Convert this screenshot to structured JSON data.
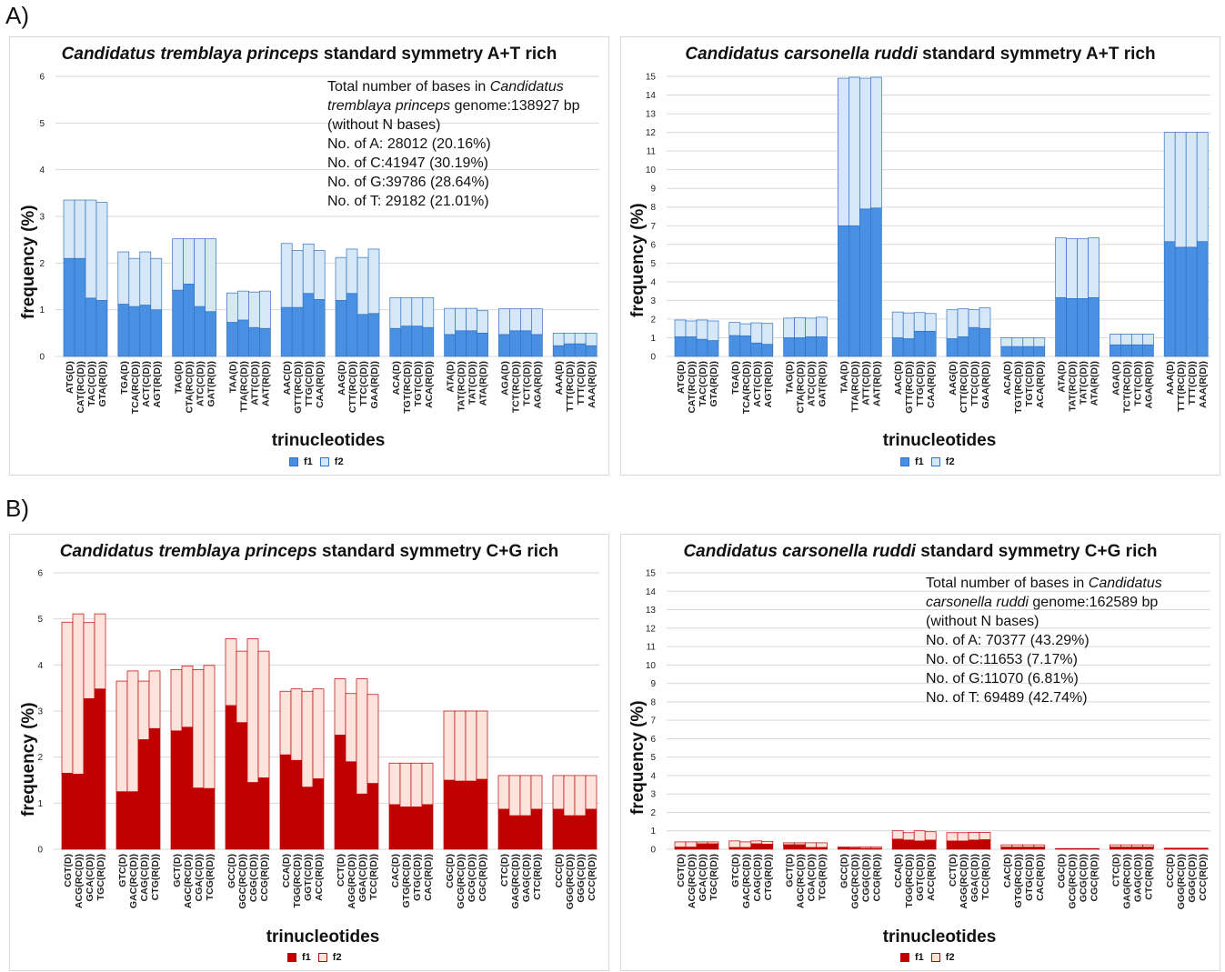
{
  "section_labels": {
    "a": "A)",
    "b": "B)"
  },
  "palette": {
    "blue_f1": "#4a90e2",
    "blue_f2": "#d6e8f8",
    "blue_stroke": "#2e73c4",
    "red_f1": "#c00000",
    "red_f2": "#fde3dc",
    "red_stroke": "#c00000"
  },
  "panels": [
    {
      "title_italic": "Candidatus tremblaya princeps",
      "title_rest": " standard symmetry A+T rich",
      "ylabel": "frequency (%)",
      "xlabel": "trinucleotides",
      "legend": [
        "f1",
        "f2"
      ],
      "annotation": [
        {
          "parts": [
            {
              "t": "Total number of bases in "
            },
            {
              "t": "Candidatus",
              "i": true
            }
          ]
        },
        {
          "parts": [
            {
              "t": "tremblaya princeps",
              "i": true
            },
            {
              "t": " genome:138927 bp"
            }
          ]
        },
        {
          "parts": [
            {
              "t": " (without N bases)"
            }
          ]
        },
        {
          "parts": [
            {
              "t": "No. of A: 28012 (20.16%)"
            }
          ]
        },
        {
          "parts": [
            {
              "t": "No. of C:41947 (30.19%)"
            }
          ]
        },
        {
          "parts": [
            {
              "t": "No. of G:39786 (28.64%)"
            }
          ]
        },
        {
          "parts": [
            {
              "t": "No. of T: 29182 (21.01%)"
            }
          ]
        }
      ]
    },
    {
      "title_italic": "Candidatus carsonella ruddi",
      "title_rest": " standard symmetry A+T rich",
      "ylabel": "frequency (%)",
      "xlabel": "trinucleotides",
      "legend": [
        "f1",
        "f2"
      ],
      "annotation": []
    },
    {
      "title_italic": "Candidatus tremblaya princeps",
      "title_rest": " standard symmetry C+G rich",
      "ylabel": "frequency (%)",
      "xlabel": "trinucleotides",
      "legend": [
        "f1",
        "f2"
      ],
      "annotation": []
    },
    {
      "title_italic": "Candidatus  carsonella ruddi",
      "title_rest": " standard symmetry C+G rich",
      "ylabel": "frequency (%)",
      "xlabel": "trinucleotides",
      "legend": [
        "f1",
        "f2"
      ],
      "annotation": [
        {
          "parts": [
            {
              "t": "Total number of bases in "
            },
            {
              "t": "Candidatus",
              "i": true
            }
          ]
        },
        {
          "parts": [
            {
              "t": "carsonella ruddi",
              "i": true
            },
            {
              "t": " genome:162589 bp"
            }
          ]
        },
        {
          "parts": [
            {
              "t": " (without N bases)"
            }
          ]
        },
        {
          "parts": [
            {
              "t": "No. of A: 70377 (43.29%)"
            }
          ]
        },
        {
          "parts": [
            {
              "t": "No. of C:11653  (7.17%)"
            }
          ]
        },
        {
          "parts": [
            {
              "t": "No. of G:11070  (6.81%)"
            }
          ]
        },
        {
          "parts": [
            {
              "t": "No. of T: 69489 (42.74%)"
            }
          ]
        }
      ]
    }
  ],
  "chart_data": [
    {
      "type": "bar",
      "stacked": true,
      "color_scheme": "blue",
      "title": "Candidatus tremblaya princeps standard symmetry A+T rich",
      "xlabel": "trinucleotides",
      "ylabel": "frequency (%)",
      "ylim": [
        0,
        6
      ],
      "yticks": [
        0,
        1,
        2,
        3,
        4,
        5,
        6
      ],
      "grid": true,
      "legend_position": "bottom",
      "groups": [
        {
          "labels": [
            "ATG(D)",
            "CAT(RC(D))",
            "TAC(C(D))",
            "GTA(R(D))"
          ],
          "f1": [
            2.1,
            2.1,
            1.25,
            1.2
          ],
          "f2": [
            1.25,
            1.25,
            2.1,
            2.1
          ]
        },
        {
          "labels": [
            "TGA(D)",
            "TCA(RC(D))",
            "ACT(C(D))",
            "AGT(R(D))"
          ],
          "f1": [
            1.12,
            1.07,
            1.1,
            1.0
          ],
          "f2": [
            1.12,
            1.03,
            1.14,
            1.1
          ]
        },
        {
          "labels": [
            "TAG(D)",
            "CTA(RC(D))",
            "ATC(C(D))",
            "GAT(R(D))"
          ],
          "f1": [
            1.42,
            1.55,
            1.07,
            0.96
          ],
          "f2": [
            1.1,
            0.97,
            1.45,
            1.56
          ]
        },
        {
          "labels": [
            "TAA(D)",
            "TTA(RC(D))",
            "ATT(C(D))",
            "AAT(R(D))"
          ],
          "f1": [
            0.73,
            0.78,
            0.62,
            0.6
          ],
          "f2": [
            0.63,
            0.62,
            0.76,
            0.8
          ]
        },
        {
          "labels": [
            "AAC(D)",
            "GTT(RC(D))",
            "TTG(C(D))",
            "CAA(R(D))"
          ],
          "f1": [
            1.05,
            1.05,
            1.35,
            1.22
          ],
          "f2": [
            1.37,
            1.22,
            1.06,
            1.05
          ]
        },
        {
          "labels": [
            "AAG(D)",
            "CTT(RC(D))",
            "TTC(C(D))",
            "GAA(R(D))"
          ],
          "f1": [
            1.2,
            1.35,
            0.9,
            0.92
          ],
          "f2": [
            0.92,
            0.95,
            1.22,
            1.38
          ]
        },
        {
          "labels": [
            "ACA(D)",
            "TGT(RC(D))",
            "TGT(C(D))",
            "ACA(R(D))"
          ],
          "f1": [
            0.6,
            0.65,
            0.65,
            0.62
          ],
          "f2": [
            0.66,
            0.61,
            0.61,
            0.64
          ]
        },
        {
          "labels": [
            "ATA(D)",
            "TAT(RC(D))",
            "TAT(C(D))",
            "ATA(R(D))"
          ],
          "f1": [
            0.47,
            0.55,
            0.55,
            0.5
          ],
          "f2": [
            0.56,
            0.48,
            0.48,
            0.48
          ]
        },
        {
          "labels": [
            "AGA(D)",
            "TCT(RC(D))",
            "TCT(C(D))",
            "AGA(R(D))"
          ],
          "f1": [
            0.47,
            0.55,
            0.55,
            0.47
          ],
          "f2": [
            0.55,
            0.47,
            0.47,
            0.55
          ]
        },
        {
          "labels": [
            "AAA(D)",
            "TTT(RC(D))",
            "TTT(C(D))",
            "AAA(R(D))"
          ],
          "f1": [
            0.23,
            0.27,
            0.27,
            0.23
          ],
          "f2": [
            0.27,
            0.23,
            0.23,
            0.27
          ]
        }
      ]
    },
    {
      "type": "bar",
      "stacked": true,
      "color_scheme": "blue",
      "title": "Candidatus carsonella ruddi standard symmetry A+T rich",
      "xlabel": "trinucleotides",
      "ylabel": "frequency (%)",
      "ylim": [
        0,
        15
      ],
      "yticks": [
        0,
        1,
        2,
        3,
        4,
        5,
        6,
        7,
        8,
        9,
        10,
        11,
        12,
        13,
        14,
        15
      ],
      "grid": true,
      "legend_position": "bottom",
      "groups": [
        {
          "labels": [
            "ATG(D)",
            "CAT(RC(D))",
            "TAC(C(D))",
            "GTA(R(D))"
          ],
          "f1": [
            1.05,
            1.05,
            0.92,
            0.85
          ],
          "f2": [
            0.9,
            0.85,
            1.03,
            1.05
          ]
        },
        {
          "labels": [
            "TGA(D)",
            "TCA(RC(D))",
            "ACT(C(D))",
            "AGT(R(D))"
          ],
          "f1": [
            1.12,
            1.1,
            0.72,
            0.65
          ],
          "f2": [
            0.7,
            0.65,
            1.08,
            1.12
          ]
        },
        {
          "labels": [
            "TAG(D)",
            "CTA(RC(D))",
            "ATC(C(D))",
            "GAT(R(D))"
          ],
          "f1": [
            1.0,
            1.0,
            1.05,
            1.05
          ],
          "f2": [
            1.05,
            1.08,
            1.0,
            1.05
          ]
        },
        {
          "labels": [
            "TAA(D)",
            "TTA(RC(D))",
            "ATT(C(D))",
            "AAT(R(D))"
          ],
          "f1": [
            7.0,
            7.0,
            7.9,
            7.95
          ],
          "f2": [
            7.9,
            7.95,
            7.0,
            7.0
          ]
        },
        {
          "labels": [
            "AAC(D)",
            "GTT(RC(D))",
            "TTG(C(D))",
            "CAA(R(D))"
          ],
          "f1": [
            1.0,
            0.95,
            1.35,
            1.35
          ],
          "f2": [
            1.38,
            1.38,
            1.0,
            0.95
          ]
        },
        {
          "labels": [
            "AAG(D)",
            "CTT(RC(D))",
            "TTC(C(D))",
            "GAA(R(D))"
          ],
          "f1": [
            0.95,
            1.05,
            1.55,
            1.5
          ],
          "f2": [
            1.55,
            1.5,
            0.95,
            1.1
          ]
        },
        {
          "labels": [
            "ACA(D)",
            "TGT(RC(D))",
            "TGT(C(D))",
            "ACA(R(D))"
          ],
          "f1": [
            0.53,
            0.53,
            0.53,
            0.53
          ],
          "f2": [
            0.47,
            0.47,
            0.47,
            0.47
          ]
        },
        {
          "labels": [
            "ATA(D)",
            "TAT(RC(D))",
            "TAT(C(D))",
            "ATA(R(D))"
          ],
          "f1": [
            3.15,
            3.1,
            3.1,
            3.15
          ],
          "f2": [
            3.2,
            3.2,
            3.2,
            3.2
          ]
        },
        {
          "labels": [
            "AGA(D)",
            "TCT(RC(D))",
            "TCT(C(D))",
            "AGA(R(D))"
          ],
          "f1": [
            0.62,
            0.62,
            0.62,
            0.62
          ],
          "f2": [
            0.58,
            0.58,
            0.58,
            0.58
          ]
        },
        {
          "labels": [
            "AAA(D)",
            "TTT(RC(D))",
            "TTT(C(D))",
            "AAA(R(D))"
          ],
          "f1": [
            6.15,
            5.85,
            5.85,
            6.15
          ],
          "f2": [
            5.85,
            6.15,
            6.15,
            5.85
          ]
        }
      ]
    },
    {
      "type": "bar",
      "stacked": true,
      "color_scheme": "red",
      "title": "Candidatus tremblaya princeps standard symmetry C+G rich",
      "xlabel": "trinucleotides",
      "ylabel": "frequency (%)",
      "ylim": [
        0,
        6
      ],
      "yticks": [
        0,
        1,
        2,
        3,
        4,
        5,
        6
      ],
      "grid": true,
      "legend_position": "bottom",
      "groups": [
        {
          "labels": [
            "CGT(D)",
            "ACG(RC(D))",
            "GCA(C(D))",
            "TGC(R(D))"
          ],
          "f1": [
            1.65,
            1.63,
            3.27,
            3.48
          ],
          "f2": [
            3.28,
            3.48,
            1.65,
            1.63
          ]
        },
        {
          "labels": [
            "GTC(D)",
            "GAC(RC(D))",
            "CAG(C(D))",
            "CTG(R(D))"
          ],
          "f1": [
            1.25,
            1.25,
            2.38,
            2.62
          ],
          "f2": [
            2.4,
            2.62,
            1.27,
            1.25
          ]
        },
        {
          "labels": [
            "GCT(D)",
            "AGC(RC(D))",
            "CGA(C(D))",
            "TCG(R(D))"
          ],
          "f1": [
            2.57,
            2.65,
            1.33,
            1.32
          ],
          "f2": [
            1.33,
            1.33,
            2.57,
            2.67
          ]
        },
        {
          "labels": [
            "GCC(D)",
            "GGC(RC(D))",
            "CGG(C(D))",
            "CCG(R(D))"
          ],
          "f1": [
            3.12,
            2.75,
            1.45,
            1.55
          ],
          "f2": [
            1.45,
            1.55,
            3.12,
            2.75
          ]
        },
        {
          "labels": [
            "CCA(D)",
            "TGG(RC(D))",
            "GGT(C(D))",
            "ACC(R(D))"
          ],
          "f1": [
            2.05,
            1.93,
            1.35,
            1.53
          ],
          "f2": [
            1.38,
            1.55,
            2.08,
            1.95
          ]
        },
        {
          "labels": [
            "CCT(D)",
            "AGG(RC(D))",
            "GGA(C(D))",
            "TCC(R(D))"
          ],
          "f1": [
            2.48,
            1.9,
            1.2,
            1.43
          ],
          "f2": [
            1.22,
            1.48,
            2.5,
            1.93
          ]
        },
        {
          "labels": [
            "CAC(D)",
            "GTG(RC(D))",
            "GTG(C(D))",
            "CAC(R(D))"
          ],
          "f1": [
            0.97,
            0.92,
            0.92,
            0.97
          ],
          "f2": [
            0.9,
            0.95,
            0.95,
            0.9
          ]
        },
        {
          "labels": [
            "CGC(D)",
            "GCG(RC(D))",
            "GCG(C(D))",
            "CGC(R(D))"
          ],
          "f1": [
            1.5,
            1.48,
            1.48,
            1.52
          ],
          "f2": [
            1.5,
            1.52,
            1.52,
            1.48
          ]
        },
        {
          "labels": [
            "CTC(D)",
            "GAG(RC(D))",
            "GAG(C(D))",
            "CTC(R(D))"
          ],
          "f1": [
            0.87,
            0.73,
            0.73,
            0.87
          ],
          "f2": [
            0.73,
            0.87,
            0.87,
            0.73
          ]
        },
        {
          "labels": [
            "CCC(D)",
            "GGG(RC(D))",
            "GGG(C(D))",
            "CCC(R(D))"
          ],
          "f1": [
            0.87,
            0.73,
            0.73,
            0.87
          ],
          "f2": [
            0.73,
            0.87,
            0.87,
            0.73
          ]
        }
      ]
    },
    {
      "type": "bar",
      "stacked": true,
      "color_scheme": "red",
      "title": "Candidatus  carsonella ruddi standard symmetry C+G rich",
      "xlabel": "trinucleotides",
      "ylabel": "frequency (%)",
      "ylim": [
        0,
        15
      ],
      "yticks": [
        0,
        1,
        2,
        3,
        4,
        5,
        6,
        7,
        8,
        9,
        10,
        11,
        12,
        13,
        14,
        15
      ],
      "grid": true,
      "legend_position": "bottom",
      "groups": [
        {
          "labels": [
            "CGT(D)",
            "ACG(RC(D))",
            "GCA(C(D))",
            "TGC(R(D))"
          ],
          "f1": [
            0.12,
            0.12,
            0.3,
            0.3
          ],
          "f2": [
            0.28,
            0.28,
            0.1,
            0.1
          ]
        },
        {
          "labels": [
            "GTC(D)",
            "GAC(RC(D))",
            "CAG(C(D))",
            "CTG(R(D))"
          ],
          "f1": [
            0.1,
            0.1,
            0.3,
            0.28
          ],
          "f2": [
            0.35,
            0.3,
            0.15,
            0.15
          ]
        },
        {
          "labels": [
            "GCT(D)",
            "AGC(RC(D))",
            "CGA(C(D))",
            "TCG(R(D))"
          ],
          "f1": [
            0.25,
            0.25,
            0.1,
            0.1
          ],
          "f2": [
            0.1,
            0.1,
            0.25,
            0.25
          ]
        },
        {
          "labels": [
            "GCC(D)",
            "GGC(RC(D))",
            "CGG(C(D))",
            "CCG(R(D))"
          ],
          "f1": [
            0.08,
            0.07,
            0.05,
            0.05
          ],
          "f2": [
            0.05,
            0.05,
            0.08,
            0.07
          ]
        },
        {
          "labels": [
            "CCA(D)",
            "TGG(RC(D))",
            "GGT(C(D))",
            "ACC(R(D))"
          ],
          "f1": [
            0.55,
            0.5,
            0.45,
            0.5
          ],
          "f2": [
            0.45,
            0.4,
            0.55,
            0.45
          ]
        },
        {
          "labels": [
            "CCT(D)",
            "AGG(RC(D))",
            "GGA(C(D))",
            "TCC(R(D))"
          ],
          "f1": [
            0.45,
            0.45,
            0.5,
            0.52
          ],
          "f2": [
            0.45,
            0.45,
            0.42,
            0.4
          ]
        },
        {
          "labels": [
            "CAC(D)",
            "GTG(RC(D))",
            "GTG(C(D))",
            "CAC(R(D))"
          ],
          "f1": [
            0.12,
            0.12,
            0.12,
            0.12
          ],
          "f2": [
            0.12,
            0.12,
            0.12,
            0.12
          ]
        },
        {
          "labels": [
            "CGC(D)",
            "GCG(RC(D))",
            "GCG(C(D))",
            "CGC(R(D))"
          ],
          "f1": [
            0.02,
            0.02,
            0.02,
            0.02
          ],
          "f2": [
            0.02,
            0.02,
            0.02,
            0.02
          ]
        },
        {
          "labels": [
            "CTC(D)",
            "GAG(RC(D))",
            "GAG(C(D))",
            "CTC(R(D))"
          ],
          "f1": [
            0.12,
            0.12,
            0.12,
            0.12
          ],
          "f2": [
            0.12,
            0.12,
            0.12,
            0.12
          ]
        },
        {
          "labels": [
            "CCC(D)",
            "GGG(RC(D))",
            "GGG(C(D))",
            "CCC(R(D))"
          ],
          "f1": [
            0.03,
            0.03,
            0.03,
            0.03
          ],
          "f2": [
            0.03,
            0.03,
            0.03,
            0.03
          ]
        }
      ]
    }
  ]
}
